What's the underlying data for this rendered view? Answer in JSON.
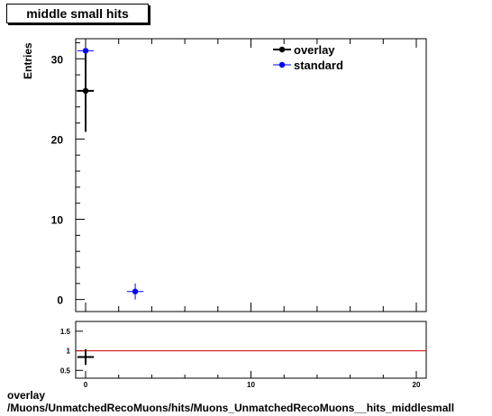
{
  "title": "middle small hits",
  "footer": {
    "line1": "overlay",
    "line2": "/Muons/UnmatchedRecoMuons/hits/Muons_UnmatchedRecoMuons__hits_middlesmall"
  },
  "colors": {
    "overlay": "#000000",
    "standard": "#0000ff",
    "ratio_line": "#cc0000"
  },
  "chart_data": [
    {
      "type": "scatter",
      "title": "middle small hits",
      "ylabel": "Entries",
      "xlim": [
        -0.6,
        20.6
      ],
      "ylim": [
        -1.5,
        32.5
      ],
      "yticks": [
        0,
        10,
        20,
        30
      ],
      "legend": {
        "placement": "top-right",
        "entries": [
          "overlay",
          "standard"
        ]
      },
      "series": [
        {
          "name": "overlay",
          "points": [
            {
              "x": 0,
              "y": 26,
              "yerr": 5.1,
              "xerr": 0.5
            }
          ]
        },
        {
          "name": "standard",
          "points": [
            {
              "x": 0,
              "y": 31,
              "yerr": 0,
              "xerr": 0.5
            },
            {
              "x": 3,
              "y": 1,
              "yerr": 1,
              "xerr": 0.5
            }
          ]
        }
      ]
    },
    {
      "type": "scatter",
      "xlim": [
        -0.6,
        20.6
      ],
      "ylim": [
        0.3,
        1.75
      ],
      "yticks": [
        0.5,
        1,
        1.5
      ],
      "xticks": [
        0,
        10,
        20
      ],
      "reference_line": 1,
      "series": [
        {
          "points": [
            {
              "x": 0,
              "y": 0.84,
              "yerr": 0.2,
              "xerr": 0.5
            }
          ]
        }
      ]
    }
  ]
}
